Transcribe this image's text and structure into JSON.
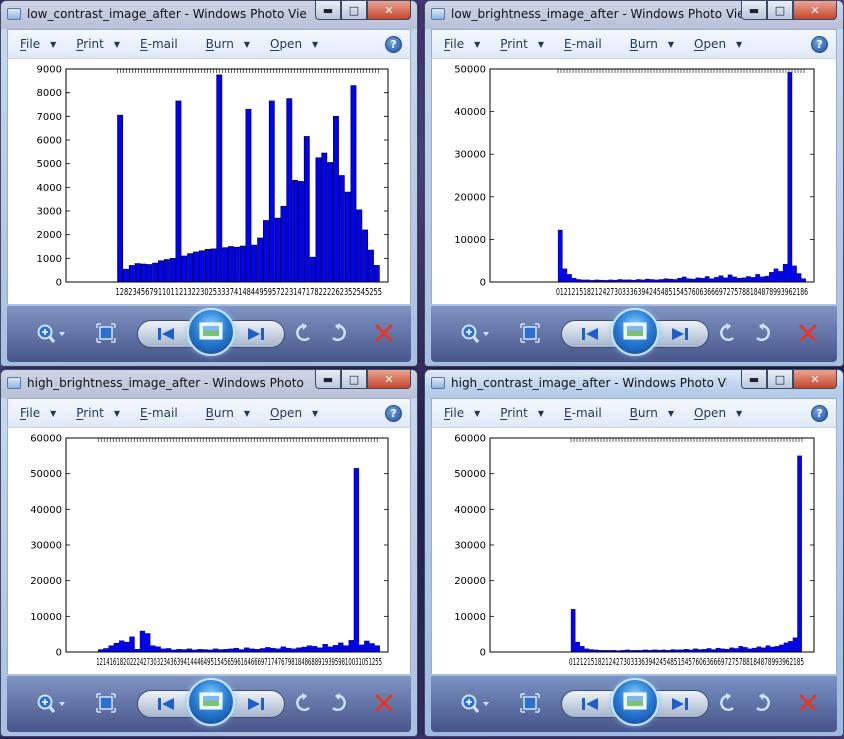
{
  "windows": [
    {
      "title": "low_contrast_image_after - Windows Photo Viewer",
      "menu": {
        "file": "File",
        "print": "Print",
        "email": "E-mail",
        "burn": "Burn",
        "open": "Open"
      },
      "chart_data": {
        "type": "bar",
        "title": "",
        "xlabel": "",
        "ylabel": "",
        "ylim": [
          0,
          9000
        ],
        "yticks": [
          0,
          1000,
          2000,
          3000,
          4000,
          5000,
          6000,
          7000,
          8000,
          9000
        ],
        "xtick_text": "128234567911011213223025333741484495957223147178222262352545255",
        "values": [
          7050,
          540,
          700,
          780,
          760,
          740,
          800,
          900,
          950,
          1000,
          7650,
          1100,
          1200,
          1270,
          1320,
          1380,
          1400,
          8750,
          1450,
          1500,
          1470,
          1520,
          7300,
          1560,
          1860,
          2600,
          7650,
          2700,
          3200,
          7750,
          4300,
          4250,
          6150,
          1050,
          5250,
          5450,
          5050,
          7000,
          4500,
          3800,
          8300,
          3050,
          2200,
          1350,
          700
        ],
        "color": "#0000ff"
      }
    },
    {
      "title": "low_brightness_image_after - Windows Photo Viewer",
      "menu": {
        "file": "File",
        "print": "Print",
        "email": "E-mail",
        "burn": "Burn",
        "open": "Open"
      },
      "chart_data": {
        "type": "bar",
        "title": "",
        "xlabel": "",
        "ylabel": "",
        "ylim": [
          0,
          50000
        ],
        "yticks": [
          0,
          10000,
          20000,
          30000,
          40000,
          50000
        ],
        "xtick_text": "01212151821242730333639424548515457606366697275788184878993962186",
        "values": [
          12200,
          3100,
          1800,
          900,
          600,
          500,
          500,
          400,
          500,
          450,
          400,
          500,
          450,
          600,
          500,
          550,
          450,
          600,
          500,
          700,
          600,
          500,
          600,
          800,
          700,
          600,
          900,
          1200,
          800,
          700,
          1000,
          900,
          1300,
          800,
          1100,
          1500,
          1000,
          1700,
          1200,
          900,
          1000,
          1300,
          1100,
          1800,
          1200,
          1400,
          2300,
          3100,
          2500,
          4200,
          49200,
          3800,
          2000,
          800
        ],
        "color": "#0000ff"
      }
    },
    {
      "title": "high_brightness_image_after - Windows Photo Viewer",
      "menu": {
        "file": "File",
        "print": "Print",
        "email": "E-mail",
        "burn": "Burn",
        "open": "Open"
      },
      "chart_data": {
        "type": "bar",
        "title": "",
        "xlabel": "",
        "ylabel": "",
        "ylim": [
          0,
          60000
        ],
        "yticks": [
          0,
          10000,
          20000,
          30000,
          40000,
          50000,
          60000
        ],
        "xtick_text": "1214161820222427303234363941444649515456596164666971747679818486889193959810031051255",
        "values": [
          700,
          1000,
          1800,
          2500,
          3200,
          2800,
          4300,
          800,
          5900,
          5200,
          1800,
          1500,
          900,
          1000,
          600,
          800,
          700,
          900,
          600,
          800,
          700,
          600,
          900,
          700,
          800,
          900,
          1100,
          700,
          1200,
          900,
          800,
          1000,
          1300,
          1100,
          900,
          1500,
          1100,
          900,
          1200,
          1400,
          1800,
          1600,
          1200,
          2200,
          1500,
          1900,
          2600,
          1800,
          3300,
          51500,
          2000,
          3100,
          2400,
          1800
        ],
        "color": "#0000ff"
      }
    },
    {
      "title": "high_contrast_image_after - Windows Photo Viewer",
      "menu": {
        "file": "File",
        "print": "Print",
        "email": "E-mail",
        "burn": "Burn",
        "open": "Open"
      },
      "chart_data": {
        "type": "bar",
        "title": "",
        "xlabel": "",
        "ylabel": "",
        "ylim": [
          0,
          60000
        ],
        "yticks": [
          0,
          10000,
          20000,
          30000,
          40000,
          50000,
          60000
        ],
        "xtick_text": "01212151821242730333639424548515457606366697275788184878993962185",
        "values": [
          12000,
          2800,
          1600,
          900,
          700,
          600,
          500,
          500,
          450,
          500,
          400,
          500,
          600,
          450,
          500,
          500,
          600,
          500,
          650,
          550,
          600,
          500,
          700,
          600,
          650,
          800,
          600,
          900,
          700,
          800,
          1000,
          700,
          1100,
          900,
          800,
          1200,
          1000,
          1600,
          1300,
          900,
          1100,
          1500,
          1200,
          1800,
          1400,
          1600,
          2000,
          2600,
          3000,
          4000,
          55000
        ],
        "color": "#0000ff"
      }
    }
  ]
}
